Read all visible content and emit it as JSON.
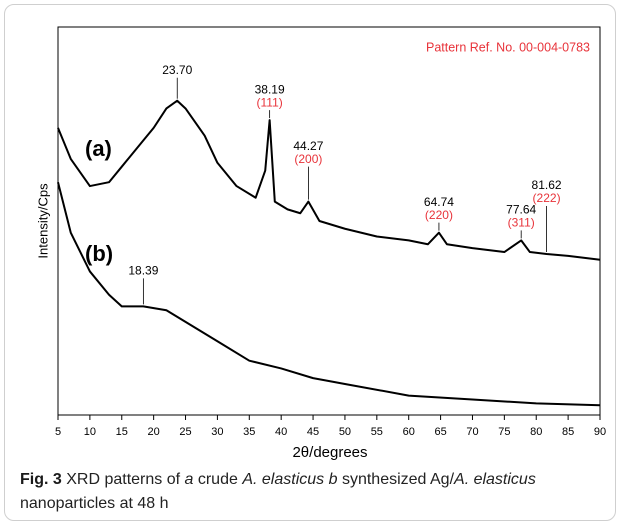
{
  "chart_data": {
    "type": "line",
    "xlabel": "2θ/degrees",
    "ylabel": "Intensity/Cps",
    "reference": "Pattern Ref. No. 00-004-0783",
    "xlim": [
      5,
      90
    ],
    "ylim": [
      0,
      100
    ],
    "xticks": [
      5,
      10,
      15,
      20,
      25,
      30,
      35,
      40,
      45,
      50,
      55,
      60,
      65,
      70,
      75,
      80,
      85,
      90
    ],
    "series": [
      {
        "name": "(a)",
        "color": "#000000",
        "x": [
          5,
          7,
          10,
          13,
          15,
          18,
          20,
          22,
          23.7,
          25,
          28,
          30,
          33,
          36,
          37.5,
          38.19,
          39,
          41,
          43,
          44.27,
          46,
          50,
          55,
          60,
          63,
          64.74,
          66,
          70,
          75,
          77.64,
          79,
          81.62,
          85,
          90
        ],
        "values": [
          74,
          66,
          59,
          60,
          64,
          70,
          74,
          79,
          81,
          79,
          72,
          65,
          59,
          56,
          63,
          76,
          55,
          53,
          52,
          55,
          50,
          48,
          46,
          45,
          44,
          47,
          44,
          43,
          42,
          45,
          42,
          41.5,
          41,
          40
        ]
      },
      {
        "name": "(b)",
        "color": "#000000",
        "x": [
          5,
          7,
          10,
          13,
          15,
          18.39,
          22,
          25,
          30,
          35,
          40,
          45,
          50,
          60,
          70,
          80,
          90
        ],
        "values": [
          60,
          47,
          37,
          31,
          28,
          28,
          27,
          24,
          19,
          14,
          12,
          9.5,
          8,
          5,
          4,
          3,
          2.5
        ]
      }
    ],
    "peaks": [
      {
        "value": 23.7,
        "label": "23.70",
        "series": 0
      },
      {
        "value": 38.19,
        "label": "38.19",
        "hkl": "(111)",
        "series": 0
      },
      {
        "value": 44.27,
        "label": "44.27",
        "hkl": "(200)",
        "series": 0
      },
      {
        "value": 64.74,
        "label": "64.74",
        "hkl": "(220)",
        "series": 0
      },
      {
        "value": 77.64,
        "label": "77.64",
        "hkl": "(311)",
        "series": 0
      },
      {
        "value": 81.62,
        "label": "81.62",
        "hkl": "(222)",
        "series": 0
      },
      {
        "value": 18.39,
        "label": "18.39",
        "series": 1
      }
    ]
  },
  "caption": [
    "Fig. 3",
    " XRD patterns of ",
    "a",
    " crude ",
    "A. elasticus",
    " ",
    "b",
    " synthesized Ag/",
    "A. elasticus",
    " nanoparticles at 48 h"
  ]
}
